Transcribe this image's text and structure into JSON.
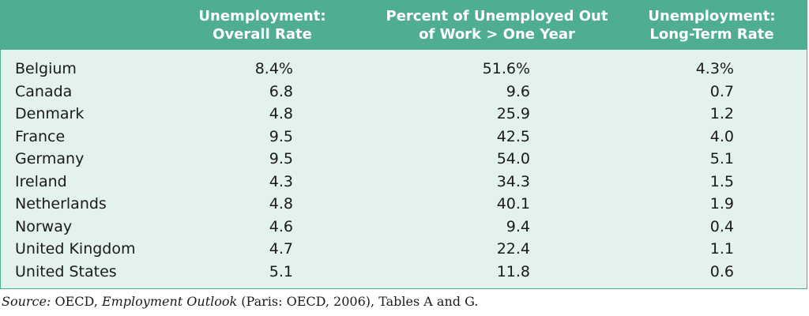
{
  "table": {
    "headers": {
      "overall": [
        "Unemployment:",
        "Overall Rate"
      ],
      "percent": [
        "Percent of Unemployed Out",
        "of Work > One Year"
      ],
      "longterm": [
        "Unemployment:",
        "Long-Term Rate"
      ]
    },
    "rows": [
      {
        "country": "Belgium",
        "overall": "8.4%",
        "percent": "51.6%",
        "longterm": "4.3%"
      },
      {
        "country": "Canada",
        "overall": "6.8",
        "percent": "9.6",
        "longterm": "0.7"
      },
      {
        "country": "Denmark",
        "overall": "4.8",
        "percent": "25.9",
        "longterm": "1.2"
      },
      {
        "country": "France",
        "overall": "9.5",
        "percent": "42.5",
        "longterm": "4.0"
      },
      {
        "country": "Germany",
        "overall": "9.5",
        "percent": "54.0",
        "longterm": "5.1"
      },
      {
        "country": "Ireland",
        "overall": "4.3",
        "percent": "34.3",
        "longterm": "1.5"
      },
      {
        "country": "Netherlands",
        "overall": "4.8",
        "percent": "40.1",
        "longterm": "1.9"
      },
      {
        "country": "Norway",
        "overall": "4.6",
        "percent": "9.4",
        "longterm": "0.4"
      },
      {
        "country": "United Kingdom",
        "overall": "4.7",
        "percent": "22.4",
        "longterm": "1.1"
      },
      {
        "country": "United States",
        "overall": "5.1",
        "percent": "11.8",
        "longterm": "0.6"
      }
    ]
  },
  "source": {
    "label": "Source:",
    "pre": " OECD, ",
    "title": "Employment Outlook",
    "post": " (Paris: OECD, 2006), Tables A and G."
  },
  "colors": {
    "header_bg": "#4fad94",
    "body_bg": "#e4f2ec",
    "header_text": "#ffffff"
  }
}
